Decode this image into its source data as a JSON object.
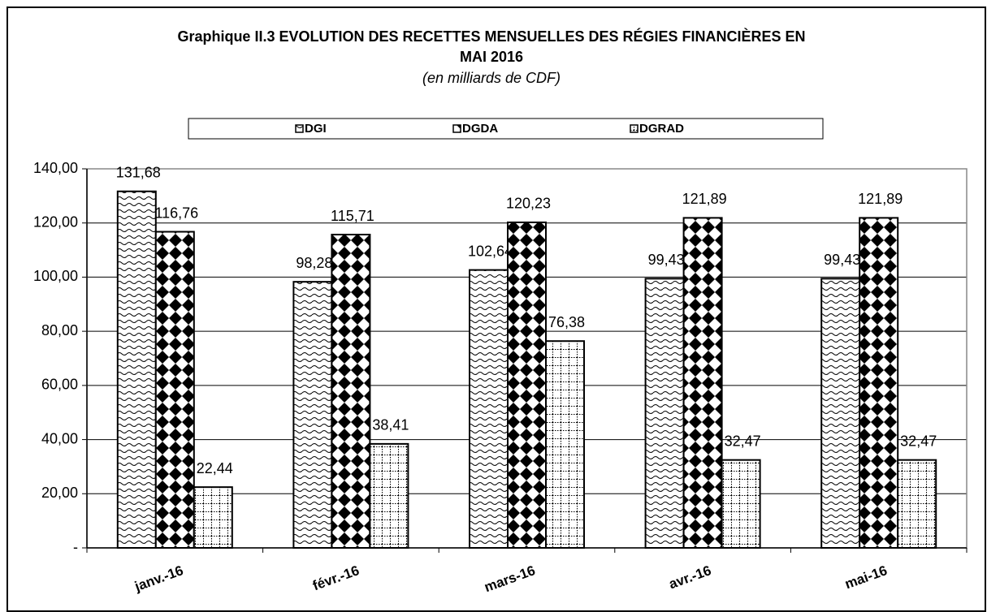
{
  "chart_data": {
    "type": "bar",
    "title": [
      "Graphique II.3 EVOLUTION DES RECETTES MENSUELLES DES RÉGIES FINANCIÈRES  EN",
      "MAI 2016"
    ],
    "subtitle": "(en milliards de CDF)",
    "categories": [
      "janv.-16",
      "févr.-16",
      "mars-16",
      "avr.-16",
      "mai-16"
    ],
    "series": [
      {
        "name": "DGI",
        "color": "#000000",
        "values": [
          131.68,
          98.28,
          102.64,
          99.43,
          99.43
        ],
        "value_labels": [
          "131,68",
          "98,28",
          "102,64",
          "99,43",
          "99,43"
        ]
      },
      {
        "name": "DGDA",
        "color": "#000000",
        "values": [
          116.76,
          115.71,
          120.23,
          121.89,
          121.89
        ],
        "value_labels": [
          "116,76",
          "115,71",
          "120,23",
          "121,89",
          "121,89"
        ]
      },
      {
        "name": "DGRAD",
        "color": "#000000",
        "values": [
          22.44,
          38.41,
          76.38,
          32.47,
          32.47
        ],
        "value_labels": [
          "22,44",
          "38,41",
          "76,38",
          "32,47",
          "32,47"
        ]
      }
    ],
    "ylim": [
      0,
      140
    ],
    "yticks": [
      {
        "value": 0,
        "label": "-"
      },
      {
        "value": 20,
        "label": "20,00"
      },
      {
        "value": 40,
        "label": "40,00"
      },
      {
        "value": 60,
        "label": "60,00"
      },
      {
        "value": 80,
        "label": "80,00"
      },
      {
        "value": 100,
        "label": "100,00"
      },
      {
        "value": 120,
        "label": "120,00"
      },
      {
        "value": 140,
        "label": "140,00"
      }
    ],
    "grid": true,
    "legend": "top"
  }
}
